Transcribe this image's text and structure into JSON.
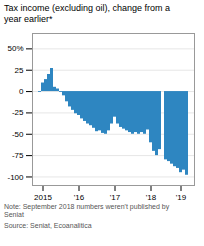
{
  "chart_data": {
    "type": "bar",
    "title": "Tax income (excluding oil), change from a\nyear earlier*",
    "note": "Note: September 2018 numbers weren't published by\nSeniat",
    "source": "Source: Seniat, Ecoanalitica",
    "color": "#2e86c1",
    "grid": true,
    "ylim": [
      -110,
      68
    ],
    "yticks": [
      {
        "value": 50,
        "label": "50%"
      },
      25,
      0,
      -25,
      -50,
      -75,
      -100
    ],
    "categories": [
      null,
      "2015",
      null,
      null,
      null,
      null,
      null,
      null,
      null,
      null,
      null,
      null,
      null,
      "'16",
      null,
      null,
      null,
      null,
      null,
      null,
      null,
      null,
      null,
      null,
      null,
      "'17",
      null,
      null,
      null,
      null,
      null,
      null,
      null,
      null,
      null,
      null,
      null,
      "'18",
      null,
      null,
      null,
      null,
      null,
      null,
      null,
      null,
      null,
      "'19",
      null,
      null
    ],
    "values": [
      -1,
      10,
      14,
      20,
      27,
      5,
      3,
      -1,
      -5,
      -12,
      -18,
      -22,
      -26,
      -28,
      -32,
      -35,
      -38,
      -40,
      -43,
      -47,
      -46,
      -49,
      -50,
      -46,
      -38,
      -30,
      -38,
      -42,
      -44,
      -46,
      -48,
      -50,
      -48,
      -50,
      -48,
      -50,
      -45,
      -60,
      -70,
      -75,
      -68,
      0,
      -80,
      -82,
      -85,
      -88,
      -90,
      -95,
      -92,
      -98
    ]
  }
}
